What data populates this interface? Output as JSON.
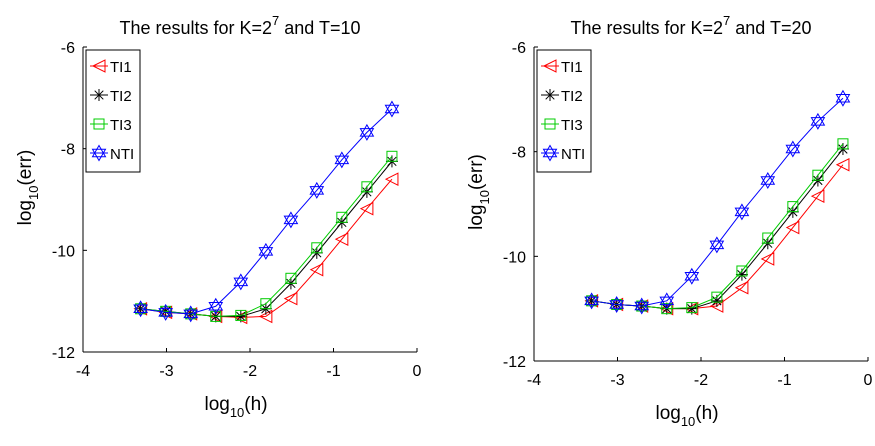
{
  "chart_data": [
    {
      "type": "line",
      "title": {
        "prefix": "The results for K=2",
        "exponent": "7",
        "suffix": " and T=10"
      },
      "xlabel": {
        "base": "log",
        "sub": "10",
        "rest": "(h)"
      },
      "ylabel": {
        "base": "log",
        "sub": "10",
        "rest": "(err)"
      },
      "xlim": [
        -4,
        0
      ],
      "ylim": [
        -12,
        -6
      ],
      "xticks": [
        "-4",
        "-3",
        "-2",
        "-1",
        "0"
      ],
      "yticks": [
        "-12",
        "-10",
        "-8",
        "-6"
      ],
      "grid": false,
      "legend_position": "top-left",
      "x": [
        -3.31,
        -3.01,
        -2.71,
        -2.41,
        -2.11,
        -1.81,
        -1.51,
        -1.2,
        -0.9,
        -0.6,
        -0.3
      ],
      "series": [
        {
          "name": "TI1",
          "color": "#ff0000",
          "marker": "triangle-left",
          "values": [
            -11.15,
            -11.22,
            -11.25,
            -11.3,
            -11.32,
            -11.3,
            -10.95,
            -10.38,
            -9.78,
            -9.18,
            -8.6
          ]
        },
        {
          "name": "TI2",
          "color": "#000000",
          "marker": "asterisk",
          "values": [
            -11.15,
            -11.2,
            -11.25,
            -11.3,
            -11.3,
            -11.15,
            -10.65,
            -10.05,
            -9.45,
            -8.85,
            -8.25
          ]
        },
        {
          "name": "TI3",
          "color": "#00cc00",
          "marker": "square",
          "values": [
            -11.15,
            -11.2,
            -11.25,
            -11.3,
            -11.28,
            -11.05,
            -10.55,
            -9.95,
            -9.35,
            -8.75,
            -8.15
          ]
        },
        {
          "name": "NTI",
          "color": "#0000ff",
          "marker": "hexagram",
          "values": [
            -11.15,
            -11.22,
            -11.25,
            -11.1,
            -10.62,
            -10.02,
            -9.4,
            -8.82,
            -8.22,
            -7.68,
            -7.22
          ]
        }
      ]
    },
    {
      "type": "line",
      "title": {
        "prefix": "The results for K=2",
        "exponent": "7",
        "suffix": " and T=20"
      },
      "xlabel": {
        "base": "log",
        "sub": "10",
        "rest": "(h)"
      },
      "ylabel": {
        "base": "log",
        "sub": "10",
        "rest": "(err)"
      },
      "xlim": [
        -4,
        0
      ],
      "ylim": [
        -12,
        -6
      ],
      "xticks": [
        "-4",
        "-3",
        "-2",
        "-1",
        "0"
      ],
      "yticks": [
        "-12",
        "-10",
        "-8",
        "-6"
      ],
      "grid": false,
      "legend_position": "top-left",
      "x": [
        -3.31,
        -3.01,
        -2.71,
        -2.41,
        -2.11,
        -1.81,
        -1.51,
        -1.2,
        -0.9,
        -0.6,
        -0.3
      ],
      "series": [
        {
          "name": "TI1",
          "color": "#ff0000",
          "marker": "triangle-left",
          "values": [
            -10.85,
            -10.92,
            -10.95,
            -11.0,
            -11.0,
            -10.95,
            -10.6,
            -10.05,
            -9.45,
            -8.85,
            -8.25
          ]
        },
        {
          "name": "TI2",
          "color": "#000000",
          "marker": "asterisk",
          "values": [
            -10.85,
            -10.92,
            -10.95,
            -11.0,
            -11.0,
            -10.85,
            -10.35,
            -9.75,
            -9.15,
            -8.55,
            -7.95
          ]
        },
        {
          "name": "TI3",
          "color": "#00cc00",
          "marker": "square",
          "values": [
            -10.85,
            -10.92,
            -10.95,
            -11.0,
            -10.98,
            -10.78,
            -10.28,
            -9.65,
            -9.05,
            -8.45,
            -7.85
          ]
        },
        {
          "name": "NTI",
          "color": "#0000ff",
          "marker": "hexagram",
          "values": [
            -10.85,
            -10.92,
            -10.95,
            -10.85,
            -10.38,
            -9.78,
            -9.15,
            -8.55,
            -7.95,
            -7.42,
            -6.98
          ]
        }
      ]
    }
  ]
}
